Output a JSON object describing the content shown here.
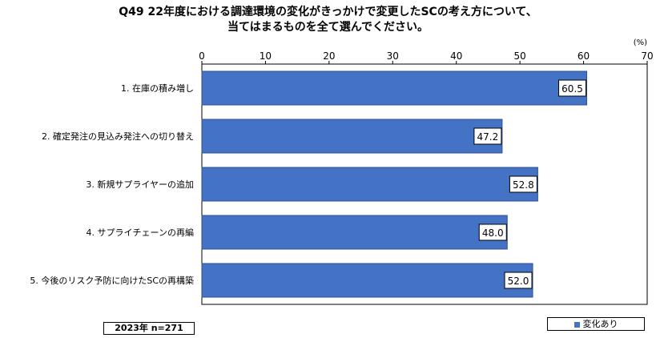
{
  "title": {
    "line1": "Q49  22年度における調達環境の変化がきっかけで変更したSCの考え方について、",
    "line2": "当てはまるものを全て選んでください。"
  },
  "unit_label": "(%)",
  "sample_note": "2023年  n=271",
  "legend_label": "変化あり",
  "colors": {
    "bar": "#4472c4",
    "bar_border": "#2f4f8f"
  },
  "chart_data": {
    "type": "bar",
    "orientation": "horizontal",
    "categories": [
      "1. 在庫の積み増し",
      "2. 確定発注の見込み発注への切り替え",
      "3. 新規サプライヤーの追加",
      "4. サプライチェーンの再編",
      "5. 今後のリスク予防に向けたSCの再構築"
    ],
    "series": [
      {
        "name": "変化あり",
        "values": [
          60.5,
          47.2,
          52.8,
          48.0,
          52.0
        ]
      }
    ],
    "value_labels": [
      "60.5",
      "47.2",
      "52.8",
      "48.0",
      "52.0"
    ],
    "xlim": [
      0,
      70
    ],
    "x_ticks": [
      0,
      10,
      20,
      30,
      40,
      50,
      60,
      70
    ],
    "grid": false,
    "legend_position": "bottom-right"
  }
}
